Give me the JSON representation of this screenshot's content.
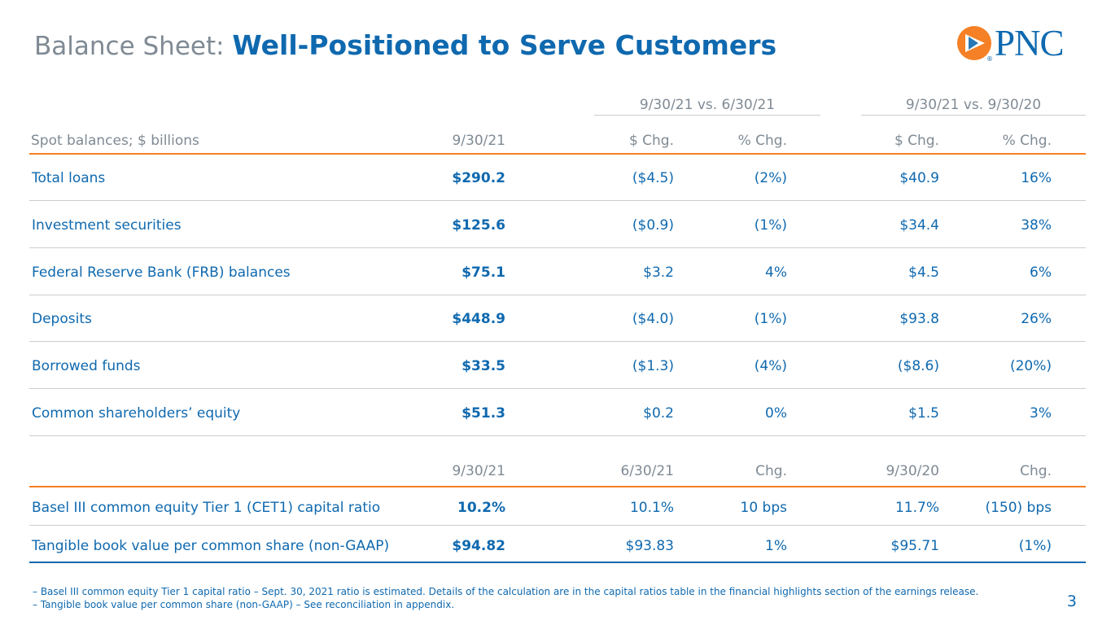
{
  "title": {
    "prefix": "Balance Sheet: ",
    "main": "Well-Positioned to Serve Customers"
  },
  "logo": {
    "text": "PNC",
    "mark": "®",
    "icon": "pnc-triangle-logo"
  },
  "table": {
    "group_headers": [
      "9/30/21 vs. 6/30/21",
      "9/30/21 vs. 9/30/20"
    ],
    "headers": [
      "Spot balances; $ billions",
      "9/30/21",
      "$ Chg.",
      "% Chg.",
      "$ Chg.",
      "% Chg."
    ],
    "rows": [
      [
        "Total loans",
        "$290.2",
        "($4.5)",
        "(2%)",
        "$40.9",
        "16%"
      ],
      [
        "Investment securities",
        "$125.6",
        "($0.9)",
        "(1%)",
        "$34.4",
        "38%"
      ],
      [
        "Federal Reserve Bank (FRB) balances",
        "$75.1",
        "$3.2",
        "4%",
        "$4.5",
        "6%"
      ],
      [
        "Deposits",
        "$448.9",
        "($4.0)",
        "(1%)",
        "$93.8",
        "26%"
      ],
      [
        "Borrowed funds",
        "$33.5",
        "($1.3)",
        "(4%)",
        "($8.6)",
        "(20%)"
      ],
      [
        "Common shareholders’ equity",
        "$51.3",
        "$0.2",
        "0%",
        "$1.5",
        "3%"
      ]
    ]
  },
  "table2": {
    "headers": [
      "9/30/21",
      "6/30/21",
      "Chg.",
      "9/30/20",
      "Chg."
    ],
    "rows": [
      [
        "Basel III common equity Tier 1 (CET1) capital ratio",
        "10.2%",
        "10.1%",
        "10 bps",
        "11.7%",
        "(150) bps"
      ],
      [
        "Tangible book value per common share (non-GAAP)",
        "$94.82",
        "$93.83",
        "1%",
        "$95.71",
        "(1%)"
      ]
    ]
  },
  "footnotes": [
    "– Basel III common equity Tier 1 capital ratio – Sept. 30, 2021 ratio is estimated. Details of the calculation are in the capital ratios table in the financial highlights section of the earnings release.",
    "– Tangible book value per common share (non-GAAP) – See reconciliation in appendix."
  ],
  "page_number": "3",
  "colors": {
    "brand_blue": "#0f69af",
    "brand_orange": "#f58025",
    "gray": "#7f8a94"
  }
}
